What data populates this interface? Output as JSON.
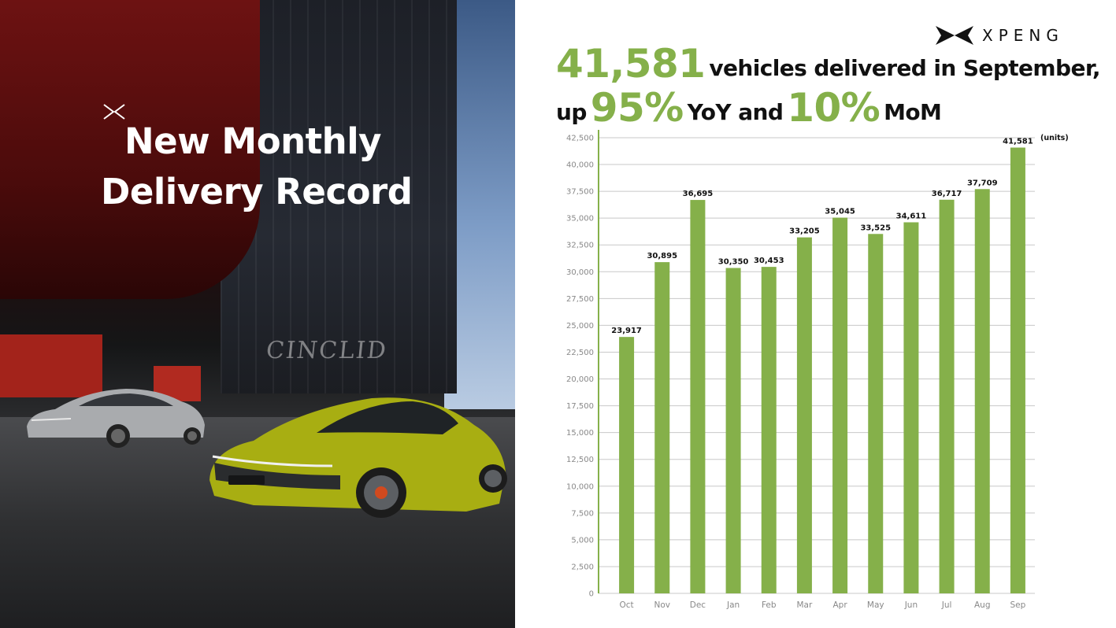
{
  "headline": {
    "line1": "New Monthly",
    "line2": "Delivery Record"
  },
  "photo": {
    "building_sign": "CINCLID"
  },
  "logo": {
    "wordmark": "XPENG",
    "icon": "xpeng-x-logo-icon"
  },
  "title": {
    "deliveries": "41,581",
    "text1": "vehicles delivered in September,",
    "prefix2": "up",
    "yoy": "95%",
    "yoy_label": "YoY and",
    "mom": "10%",
    "mom_label": "MoM"
  },
  "colors": {
    "bar": "#85b04a",
    "accent": "#85b04a",
    "grid": "#c8c8c8",
    "axis": "#85b04a"
  },
  "chart_data": {
    "type": "bar",
    "categories": [
      "Oct",
      "Nov",
      "Dec",
      "Jan",
      "Feb",
      "Mar",
      "Apr",
      "May",
      "Jun",
      "Jul",
      "Aug",
      "Sep"
    ],
    "values": [
      23917,
      30895,
      36695,
      30350,
      30453,
      33205,
      35045,
      33525,
      34611,
      36717,
      37709,
      41581
    ],
    "value_labels": [
      "23,917",
      "30,895",
      "36,695",
      "30,350",
      "30,453",
      "33,205",
      "35,045",
      "33,525",
      "34,611",
      "36,717",
      "37,709",
      "41,581"
    ],
    "unit": "(units)",
    "ylim": [
      0,
      42500
    ],
    "yticks": [
      0,
      2500,
      5000,
      7500,
      10000,
      12500,
      15000,
      17500,
      20000,
      22500,
      25000,
      27500,
      30000,
      32500,
      35000,
      37500,
      40000,
      42500
    ],
    "ytick_labels": [
      "0",
      "2,500",
      "5,000",
      "7,500",
      "10,000",
      "12,500",
      "15,000",
      "17,500",
      "20,000",
      "22,500",
      "25,000",
      "27,500",
      "30,000",
      "32,500",
      "35,000",
      "37,500",
      "40,000",
      "42,500"
    ],
    "grid": true,
    "legend": "none"
  }
}
